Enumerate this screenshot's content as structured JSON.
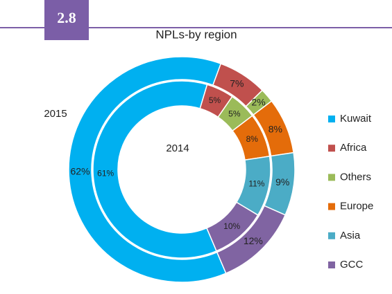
{
  "figure_number": "2.8",
  "chart_data": {
    "type": "donut",
    "title": "NPLs-by region",
    "categories": [
      "Kuwait",
      "Africa",
      "Others",
      "Europe",
      "Asia",
      "GCC"
    ],
    "colors": [
      "#00b0f0",
      "#c0504d",
      "#9bbb59",
      "#e46c0a",
      "#4bacc6",
      "#8064a2"
    ],
    "series": [
      {
        "name": "2015",
        "values": [
          62,
          7,
          2,
          8,
          9,
          12
        ],
        "value_labels": [
          "62%",
          "7%",
          "2%",
          "8%",
          "9%",
          "12%"
        ]
      },
      {
        "name": "2014",
        "values": [
          61,
          5,
          5,
          8,
          11,
          10
        ],
        "value_labels": [
          "61%",
          "5%",
          "5%",
          "8%",
          "11%",
          "10%"
        ]
      }
    ],
    "legend": "right"
  }
}
